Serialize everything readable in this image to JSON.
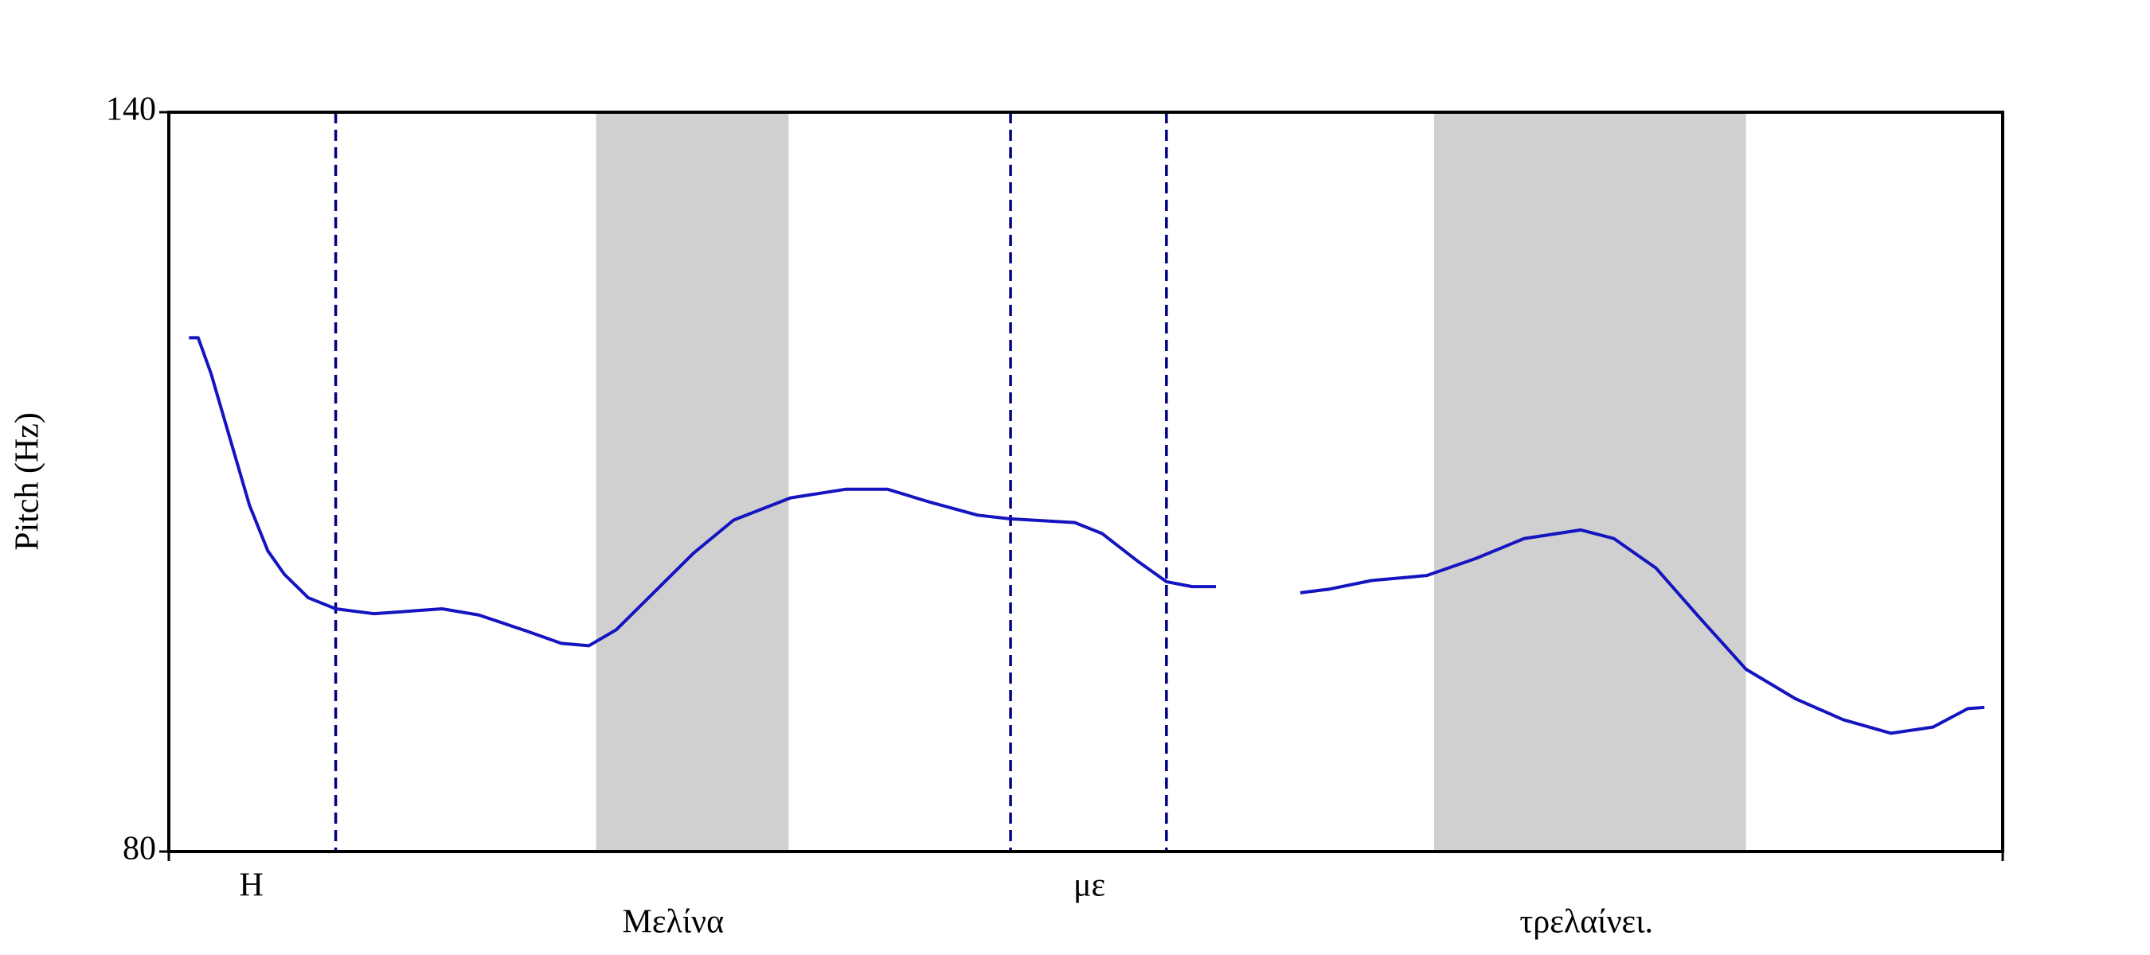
{
  "chart_data": {
    "type": "line",
    "y_label": "Pitch (Hz)",
    "xlim": [
      0,
      100
    ],
    "ylim": [
      80,
      140
    ],
    "yticks": [
      80,
      140
    ],
    "x": [
      1.1,
      1.6,
      2.3,
      3.3,
      4.4,
      5.4,
      6.3,
      7.6,
      9.1,
      11.2,
      14.9,
      16.9,
      19.5,
      21.4,
      22.9,
      24.4,
      26.3,
      28.6,
      30.8,
      33.9,
      36.9,
      39.2,
      41.4,
      44.1,
      45.9,
      49.4,
      50.9,
      52.8,
      54.4,
      55.8,
      57.1,
      59.4,
      61.7,
      63.3,
      65.6,
      68.6,
      71.3,
      73.9,
      77.0,
      78.8,
      81.1,
      83.4,
      86.0,
      88.7,
      91.3,
      93.9,
      96.2,
      98.1,
      99.0
    ],
    "series": [
      {
        "color": "#1414c0",
        "values": [
          121.7,
          121.7,
          118.8,
          113.7,
          108.1,
          104.4,
          102.5,
          100.6,
          99.7,
          99.3,
          99.7,
          99.2,
          97.9,
          96.9,
          96.7,
          98.0,
          100.8,
          104.2,
          106.9,
          108.7,
          109.4,
          109.4,
          108.4,
          107.3,
          107.0,
          106.7,
          105.8,
          103.6,
          101.9,
          101.5,
          101.5,
          null,
          101.0,
          101.3,
          102.0,
          102.4,
          103.8,
          105.4,
          106.1,
          105.4,
          103.0,
          99.1,
          94.8,
          92.4,
          90.7,
          89.6,
          90.1,
          91.6,
          91.7
        ]
      }
    ],
    "boundaries": [
      9.1,
      45.9,
      54.4
    ],
    "shaded": [
      [
        23.3,
        33.8
      ],
      [
        69.0,
        86.0
      ]
    ],
    "tier_1": [
      {
        "text": "Η",
        "x": 4.5
      },
      {
        "text": "με",
        "x": 50.2
      }
    ],
    "tier_2": [
      {
        "text": "Μελίνα",
        "x": 27.5
      },
      {
        "text": "τρελαίνει.",
        "x": 77.3
      }
    ]
  }
}
